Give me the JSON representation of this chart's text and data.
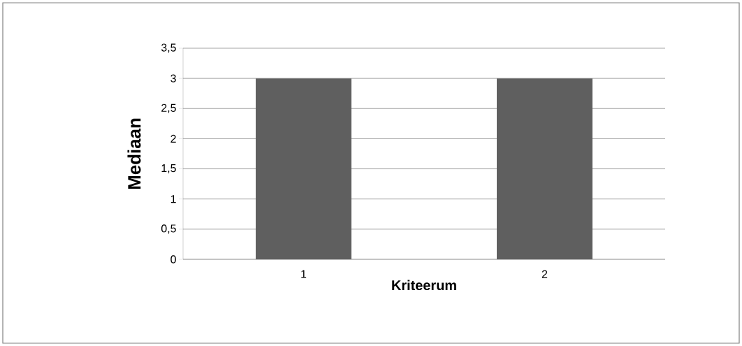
{
  "chart_data": {
    "type": "bar",
    "xlabel": "Kriteerum",
    "ylabel": "Mediaan",
    "categories": [
      "1",
      "2"
    ],
    "values": [
      3,
      3
    ],
    "color": "#5f5f5f",
    "ylim": [
      0,
      3.5
    ],
    "yticks": [
      {
        "value": 0,
        "label": "0"
      },
      {
        "value": 0.5,
        "label": "0,5"
      },
      {
        "value": 1,
        "label": "1"
      },
      {
        "value": 1.5,
        "label": "1,5"
      },
      {
        "value": 2,
        "label": "2"
      },
      {
        "value": 2.5,
        "label": "2,5"
      },
      {
        "value": 3,
        "label": "3"
      },
      {
        "value": 3.5,
        "label": "3,5"
      }
    ],
    "grid": "y"
  }
}
